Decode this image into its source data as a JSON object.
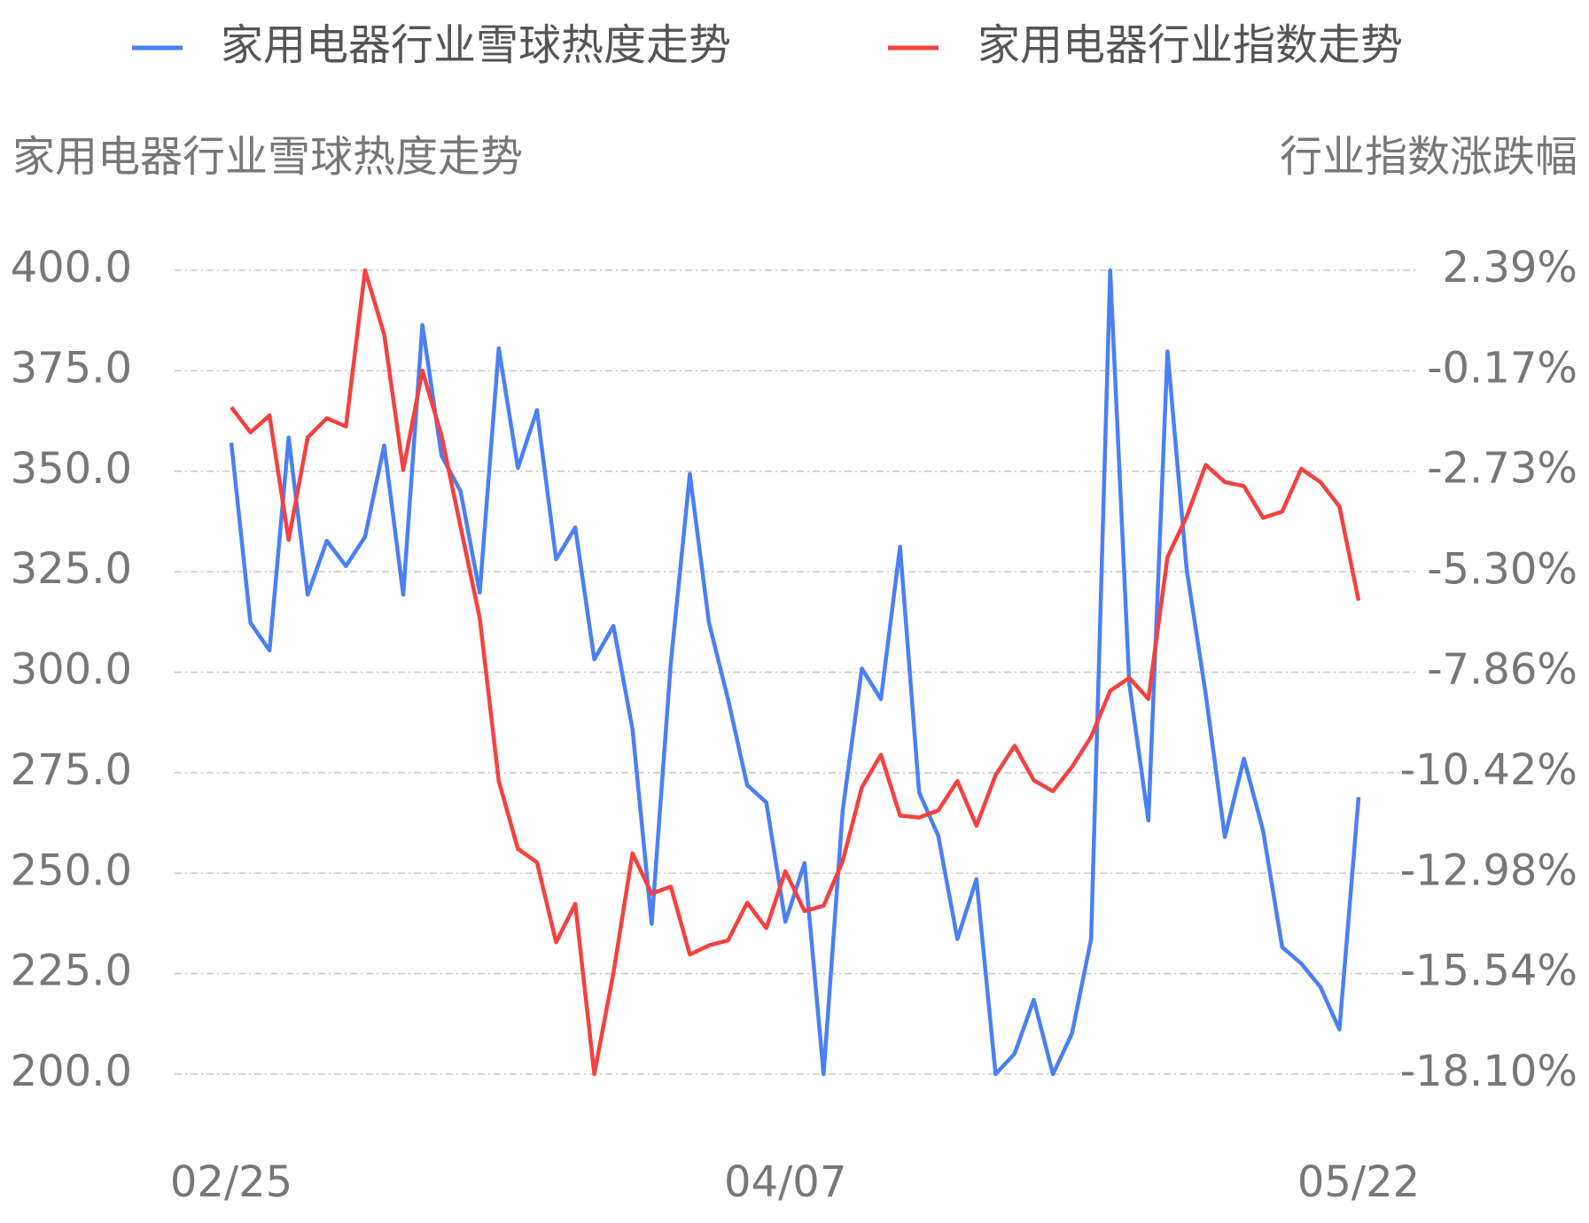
{
  "chart_data": {
    "type": "line",
    "categories": [
      "02/25",
      null,
      null,
      null,
      null,
      null,
      null,
      null,
      null,
      null,
      null,
      null,
      null,
      null,
      null,
      null,
      null,
      null,
      null,
      null,
      null,
      null,
      null,
      null,
      null,
      null,
      null,
      null,
      null,
      "04/07",
      null,
      null,
      null,
      null,
      null,
      null,
      null,
      null,
      null,
      null,
      null,
      null,
      null,
      null,
      null,
      null,
      null,
      null,
      null,
      null,
      null,
      null,
      null,
      null,
      null,
      null,
      null,
      null,
      null,
      "05/22"
    ],
    "y_label": "家用电器行业雪球热度走势",
    "y2_label": "行业指数涨跌幅",
    "series": [
      {
        "name": "家用电器行业雪球热度走势",
        "color": "#4a7ff5",
        "axis": "y",
        "values": [
          357.1,
          312.3,
          305.4,
          358.4,
          319.3,
          332.7,
          326.4,
          333.7,
          356.4,
          319.3,
          386.4,
          353.9,
          345.0,
          319.8,
          380.6,
          350.8,
          365.2,
          328.1,
          336.0,
          303.2,
          311.5,
          285.8,
          237.4,
          302.2,
          349.3,
          312.3,
          293.3,
          271.9,
          267.6,
          237.9,
          252.5,
          200.0,
          265.6,
          300.9,
          293.3,
          331.2,
          270.1,
          259.3,
          233.6,
          248.5,
          200.0,
          205.1,
          218.5,
          200.0,
          210.1,
          233.6,
          400.0,
          297.1,
          263.1,
          379.8,
          325.6,
          294.6,
          259.0,
          278.5,
          260.6,
          231.6,
          227.5,
          221.7,
          211.1,
          268.9
        ]
      },
      {
        "name": "家用电器行业指数走势",
        "color": "#f5413f",
        "axis": "y2",
        "values": [
          -1.1,
          -1.74,
          -1.31,
          -4.48,
          -1.87,
          -1.38,
          -1.59,
          2.39,
          0.76,
          -2.7,
          -0.17,
          -1.82,
          -4.15,
          -6.47,
          -10.63,
          -12.36,
          -12.7,
          -14.74,
          -13.76,
          -18.1,
          -15.52,
          -12.47,
          -13.5,
          -13.32,
          -15.05,
          -14.82,
          -14.69,
          -13.73,
          -14.38,
          -12.93,
          -13.94,
          -13.81,
          -12.67,
          -10.79,
          -9.96,
          -11.51,
          -11.56,
          -11.38,
          -10.63,
          -11.77,
          -10.48,
          -9.73,
          -10.61,
          -10.89,
          -10.27,
          -9.5,
          -8.33,
          -8.0,
          -8.54,
          -4.92,
          -3.89,
          -2.57,
          -3.01,
          -3.11,
          -3.92,
          -3.76,
          -2.67,
          -3.01,
          -3.63,
          -6.03
        ]
      }
    ],
    "ylim": [
      200,
      400
    ],
    "yticks": [
      {
        "value": 200,
        "label": "200.0"
      },
      {
        "value": 225,
        "label": "225.0"
      },
      {
        "value": 250,
        "label": "250.0"
      },
      {
        "value": 275,
        "label": "275.0"
      },
      {
        "value": 300,
        "label": "300.0"
      },
      {
        "value": 325,
        "label": "325.0"
      },
      {
        "value": 350,
        "label": "350.0"
      },
      {
        "value": 375,
        "label": "375.0"
      },
      {
        "value": 400,
        "label": "400.0"
      }
    ],
    "y2lim": [
      -18.1,
      2.39
    ],
    "y2ticks": [
      {
        "value": -18.1,
        "label": "-18.10%"
      },
      {
        "value": -15.54,
        "label": "-15.54%"
      },
      {
        "value": -12.98,
        "label": "-12.98%"
      },
      {
        "value": -10.42,
        "label": "-10.42%"
      },
      {
        "value": -7.86,
        "label": "-7.86%"
      },
      {
        "value": -5.3,
        "label": "-5.30%"
      },
      {
        "value": -2.73,
        "label": "-2.73%"
      },
      {
        "value": -0.17,
        "label": "-0.17%"
      },
      {
        "value": 2.39,
        "label": "2.39%"
      }
    ],
    "grid": true,
    "legend": "top"
  }
}
